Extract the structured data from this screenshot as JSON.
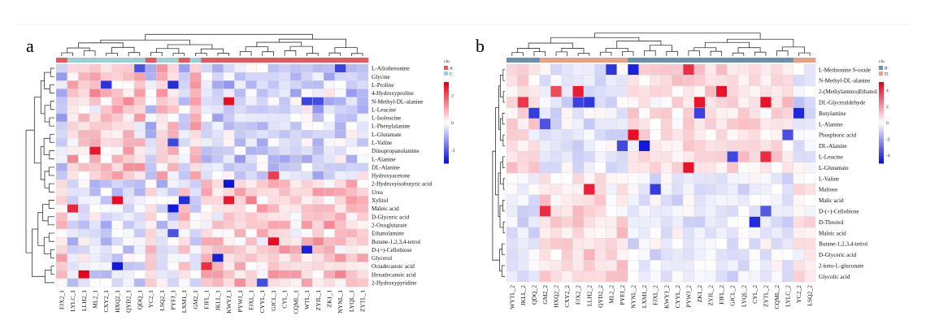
{
  "colors": {
    "high": "#e8001a",
    "mid": "#ffffff",
    "low": "#0b14d8",
    "group_A": "#e35a5e",
    "group_C": "#9ecfd6",
    "group_B": "#6b8fae",
    "group_D": "#e3a286",
    "grid": "#d9d9d9",
    "dendro": "#333333"
  },
  "chart_data": [
    {
      "type": "heatmap",
      "panel_label": "a",
      "annotation_title": "clu",
      "legend_groups": [
        "A",
        "C"
      ],
      "scale_ticks": [
        "2",
        "0",
        "-2"
      ],
      "scale_range": [
        -3,
        3
      ],
      "columns": [
        "FJX2_1",
        "LYLC_1",
        "LLH2_1",
        "ML2_1",
        "CXY2_1",
        "HXQ2_1",
        "QYD2_1",
        "QDQ_1",
        "YC2_1",
        "LSQ2_1",
        "PYFJ_1",
        "LXM1_1",
        "GM2_1",
        "FJFL_1",
        "JKLL_1",
        "KWYJ_1",
        "PYWJ_1",
        "FJXL_1",
        "CYYL_1",
        "GJCL_1",
        "CYL_1",
        "CQML_1",
        "WTL_1",
        "ZYJL_1",
        "ZK1_1",
        "NYNL_1",
        "LYQL_1",
        "ZYTL_1"
      ],
      "column_groups": [
        "A",
        "C",
        "C",
        "C",
        "C",
        "C",
        "C",
        "C",
        "A",
        "C",
        "C",
        "A",
        "C",
        "A",
        "A",
        "A",
        "A",
        "A",
        "A",
        "A",
        "A",
        "A",
        "A",
        "A",
        "A",
        "A",
        "A",
        "A"
      ],
      "rows": [
        "L-Allothreonine",
        "Glycine",
        "L-Proline",
        "4-Hydroxyproline",
        "N-Methyl-DL-alanine",
        "L-Leucine",
        "L-Isoleucine",
        "L-Phenylalanine",
        "L-Glutamate",
        "L-Valine",
        "Diisopropanolamine",
        "L-Alanine",
        "DL-Alanine",
        "Hydroxyacetone",
        "2-Hydroxyisobutyric acid",
        "Urea",
        "Xylitol",
        "Maleic acid",
        "D-Glyceric acid",
        "2-Oxoglutarate",
        "Ethanolamine",
        "Butane-1,2,3,4-tetrol",
        "D-(+)-Cellobiose",
        "Glycerol",
        "Octadecanoic acid",
        "Hexadecanoic acid",
        "2-Hydroxypyridine"
      ]
    },
    {
      "type": "heatmap",
      "panel_label": "b",
      "annotation_title": "clu",
      "legend_groups": [
        "B",
        "D"
      ],
      "scale_ticks": [
        "4",
        "2",
        "0",
        "-2",
        "-4"
      ],
      "scale_range": [
        -5,
        5
      ],
      "columns": [
        "WYTL_2",
        "JKLL_2",
        "QDQ_2",
        "GM2_2",
        "HXQ2_2",
        "CXY2_2",
        "FJX2_2",
        "LLH2_2",
        "QYD2_2",
        "ML2_2",
        "PYFJ_2",
        "NYNL_2",
        "LXM1_2",
        "FJXL_2",
        "KWYJ_2",
        "CYYL_2",
        "PYWJ_2",
        "ZK1_2",
        "ZYJL_2",
        "FJFL_2",
        "GJCL_2",
        "LYQL_2",
        "CYL_2",
        "ZYTL_2",
        "CQML_2",
        "LYLC_2",
        "YC2_2",
        "LSQ2_2"
      ],
      "column_groups": [
        "B",
        "B",
        "B",
        "D",
        "D",
        "D",
        "D",
        "D",
        "D",
        "D",
        "D",
        "B",
        "B",
        "B",
        "B",
        "B",
        "B",
        "B",
        "B",
        "B",
        "B",
        "B",
        "B",
        "B",
        "B",
        "B",
        "D",
        "D"
      ],
      "rows": [
        "L-Methionine S-oxide",
        "N-Methyl-DL-alanine",
        "2-(Methylamino)Ethanol",
        "DL-Glyceraldehyde",
        "Butylamine",
        "L-Alanine",
        "Phosphoric acid",
        "DL-Alanine",
        "L-Leucine",
        "L-Glutamate",
        "L-Valine",
        "Maltose",
        "Malic acid",
        "D-(+)-Cellobiose",
        "D-Threitol",
        "Maleic acid",
        "Butane-1,2,3,4-tetrol",
        "D-Glyceric acid",
        "2-keto-L-gluconate",
        "Glycolic acid"
      ]
    }
  ]
}
